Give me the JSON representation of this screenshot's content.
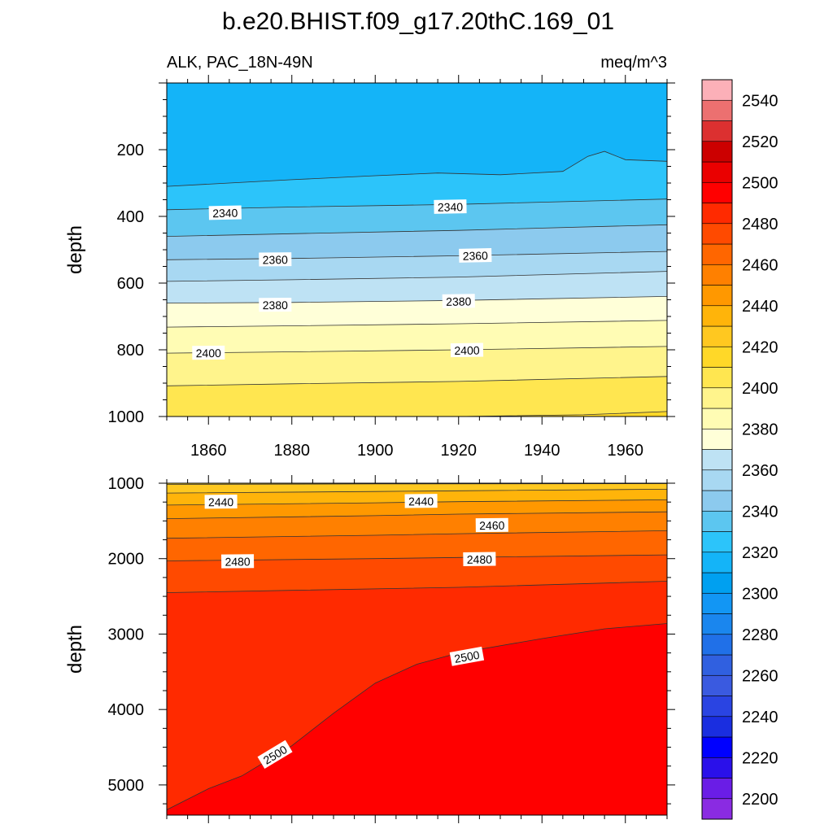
{
  "chart_data": {
    "type": "contour",
    "title": "b.e20.BHIST.f09_g17.20thC.169_01",
    "variable_label": "ALK, PAC_18N-49N",
    "units": "meq/m^3",
    "colorbar": {
      "levels": [
        2200,
        2210,
        2220,
        2230,
        2240,
        2250,
        2260,
        2270,
        2280,
        2290,
        2300,
        2310,
        2320,
        2330,
        2340,
        2350,
        2360,
        2370,
        2380,
        2390,
        2400,
        2410,
        2420,
        2430,
        2440,
        2450,
        2460,
        2470,
        2480,
        2490,
        2500,
        2510,
        2520,
        2530,
        2540,
        2550
      ],
      "tick_labels": [
        "2200",
        "2220",
        "2240",
        "2260",
        "2280",
        "2300",
        "2320",
        "2340",
        "2360",
        "2380",
        "2400",
        "2420",
        "2440",
        "2460",
        "2480",
        "2500",
        "2520",
        "2540"
      ],
      "colors": [
        "#8a2be2",
        "#6a1de6",
        "#2a10ea",
        "#0000ff",
        "#1a2ee0",
        "#2a44e2",
        "#3a5ae0",
        "#3060e0",
        "#2070e8",
        "#1a86ee",
        "#1296f4",
        "#00a0f0",
        "#14b4f8",
        "#2cc4fa",
        "#5cc6f0",
        "#8ccaee",
        "#a8d8f2",
        "#bee2f4",
        "#ffffd8",
        "#fffcb4",
        "#fff48c",
        "#ffe650",
        "#ffd828",
        "#ffc820",
        "#ffb40a",
        "#ff9800",
        "#ff8000",
        "#ff6600",
        "#ff4a00",
        "#ff2a00",
        "#ff0000",
        "#ea0000",
        "#cc0000",
        "#dc3030",
        "#ec7070",
        "#fcb0b8"
      ]
    },
    "panels": [
      {
        "name": "upper",
        "x_ticks": [
          1860,
          1880,
          1900,
          1920,
          1940,
          1960
        ],
        "x_tick_labels": [
          "1860",
          "1880",
          "1900",
          "1920",
          "1940",
          "1960"
        ],
        "xlim": [
          1850,
          1970
        ],
        "ylim": [
          0,
          1000
        ],
        "y_ticks": [
          200,
          400,
          600,
          800,
          1000
        ],
        "y_tick_labels": [
          "200",
          "400",
          "600",
          "800",
          "1000"
        ],
        "ylabel": "depth",
        "contours": [
          {
            "level": 2330,
            "depth_by_year": [
              [
                1850,
                310
              ],
              [
                1880,
                290
              ],
              [
                1900,
                278
              ],
              [
                1915,
                270
              ],
              [
                1930,
                275
              ],
              [
                1945,
                265
              ],
              [
                1951,
                220
              ],
              [
                1955,
                205
              ],
              [
                1960,
                230
              ],
              [
                1970,
                235
              ]
            ]
          },
          {
            "level": 2340,
            "depth_by_year": [
              [
                1850,
                380
              ],
              [
                1880,
                372
              ],
              [
                1920,
                364
              ],
              [
                1970,
                348
              ]
            ]
          },
          {
            "level": 2350,
            "depth_by_year": [
              [
                1850,
                460
              ],
              [
                1880,
                452
              ],
              [
                1920,
                442
              ],
              [
                1970,
                425
              ]
            ]
          },
          {
            "level": 2360,
            "depth_by_year": [
              [
                1850,
                530
              ],
              [
                1880,
                526
              ],
              [
                1920,
                518
              ],
              [
                1970,
                505
              ]
            ]
          },
          {
            "level": 2370,
            "depth_by_year": [
              [
                1850,
                595
              ],
              [
                1880,
                590
              ],
              [
                1920,
                582
              ],
              [
                1970,
                565
              ]
            ]
          },
          {
            "level": 2380,
            "depth_by_year": [
              [
                1850,
                660
              ],
              [
                1880,
                658
              ],
              [
                1920,
                652
              ],
              [
                1970,
                640
              ]
            ]
          },
          {
            "level": 2390,
            "depth_by_year": [
              [
                1850,
                732
              ],
              [
                1880,
                728
              ],
              [
                1920,
                722
              ],
              [
                1970,
                712
              ]
            ]
          },
          {
            "level": 2400,
            "depth_by_year": [
              [
                1850,
                810
              ],
              [
                1880,
                806
              ],
              [
                1920,
                800
              ],
              [
                1970,
                790
              ]
            ]
          },
          {
            "level": 2410,
            "depth_by_year": [
              [
                1850,
                908
              ],
              [
                1880,
                902
              ],
              [
                1920,
                895
              ],
              [
                1970,
                880
              ]
            ]
          },
          {
            "level": 2420,
            "depth_by_year": [
              [
                1920,
                1000
              ],
              [
                1950,
                995
              ],
              [
                1970,
                985
              ]
            ]
          }
        ],
        "contour_labels": [
          {
            "text": "2340",
            "year": 1864,
            "depth": 390
          },
          {
            "text": "2340",
            "year": 1918,
            "depth": 372
          },
          {
            "text": "2360",
            "year": 1876,
            "depth": 530
          },
          {
            "text": "2360",
            "year": 1924,
            "depth": 518
          },
          {
            "text": "2380",
            "year": 1876,
            "depth": 666
          },
          {
            "text": "2380",
            "year": 1920,
            "depth": 655
          },
          {
            "text": "2400",
            "year": 1860,
            "depth": 810
          },
          {
            "text": "2400",
            "year": 1922,
            "depth": 802
          }
        ]
      },
      {
        "name": "lower",
        "xlim": [
          1850,
          1970
        ],
        "ylim": [
          1000,
          5400
        ],
        "y_ticks": [
          1000,
          2000,
          3000,
          4000,
          5000
        ],
        "y_tick_labels": [
          "1000",
          "2000",
          "3000",
          "4000",
          "5000"
        ],
        "ylabel": "depth",
        "contours": [
          {
            "level": 2430,
            "depth_by_year": [
              [
                1850,
                1015
              ],
              [
                1900,
                1010
              ],
              [
                1970,
                1005
              ]
            ]
          },
          {
            "level": 2440,
            "depth_by_year": [
              [
                1850,
                1130
              ],
              [
                1900,
                1110
              ],
              [
                1920,
                1100
              ],
              [
                1970,
                1080
              ]
            ]
          },
          {
            "level": 2450,
            "depth_by_year": [
              [
                1850,
                1290
              ],
              [
                1900,
                1260
              ],
              [
                1920,
                1245
              ],
              [
                1970,
                1220
              ]
            ]
          },
          {
            "level": 2460,
            "depth_by_year": [
              [
                1850,
                1470
              ],
              [
                1900,
                1430
              ],
              [
                1920,
                1410
              ],
              [
                1970,
                1380
              ]
            ]
          },
          {
            "level": 2470,
            "depth_by_year": [
              [
                1850,
                1730
              ],
              [
                1900,
                1690
              ],
              [
                1920,
                1670
              ],
              [
                1970,
                1630
              ]
            ]
          },
          {
            "level": 2480,
            "depth_by_year": [
              [
                1850,
                2030
              ],
              [
                1900,
                2000
              ],
              [
                1920,
                1985
              ],
              [
                1970,
                1950
              ]
            ]
          },
          {
            "level": 2490,
            "depth_by_year": [
              [
                1850,
                2450
              ],
              [
                1880,
                2420
              ],
              [
                1920,
                2380
              ],
              [
                1970,
                2300
              ]
            ]
          },
          {
            "level": 2500,
            "depth_by_year": [
              [
                1850,
                5330
              ],
              [
                1860,
                5050
              ],
              [
                1868,
                4880
              ],
              [
                1880,
                4480
              ],
              [
                1890,
                4050
              ],
              [
                1900,
                3650
              ],
              [
                1910,
                3400
              ],
              [
                1920,
                3250
              ],
              [
                1940,
                3060
              ],
              [
                1955,
                2930
              ],
              [
                1970,
                2860
              ]
            ]
          }
        ],
        "contour_labels": [
          {
            "text": "2440",
            "year": 1863,
            "depth": 1250
          },
          {
            "text": "2440",
            "year": 1911,
            "depth": 1240
          },
          {
            "text": "2460",
            "year": 1928,
            "depth": 1560
          },
          {
            "text": "2480",
            "year": 1867,
            "depth": 2040
          },
          {
            "text": "2480",
            "year": 1925,
            "depth": 2010
          },
          {
            "text": "2500",
            "year": 1876,
            "depth": 4600
          },
          {
            "text": "2500",
            "year": 1922,
            "depth": 3300
          }
        ]
      }
    ]
  }
}
